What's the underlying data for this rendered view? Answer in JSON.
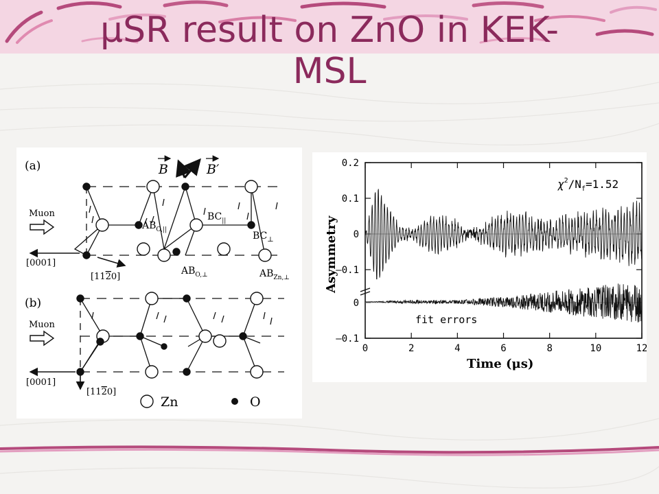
{
  "slide": {
    "title": "μSR result on ZnO in KEK-MSL",
    "title_line1": "μSR result on ZnO in KEK-",
    "title_line2": "MSL",
    "accent_color": "#8b2a5c",
    "banner_color": "#f1c9da"
  },
  "structure_figure": {
    "panel_a_label": "(a)",
    "panel_b_label": "(b)",
    "field_B": "B",
    "field_B_prime": "B′",
    "muon_label_a": "Muon",
    "muon_label_b": "Muon",
    "axis_0001_a": "[0001]",
    "axis_0001_b": "[0001]",
    "axis_1120_a": "[11",
    "axis_1120_a_bar": "2",
    "axis_1120_a_end": "0]",
    "axis_1120_b": "[11",
    "axis_1120_b_bar": "2",
    "axis_1120_b_end": "0]",
    "site_AB_O_par": "AB",
    "site_AB_O_par_sub": "O,||",
    "site_BC_par": "BC",
    "site_BC_par_sub": "||",
    "site_BC_perp": "BC",
    "site_BC_perp_sub": "⊥",
    "site_AB_O_perp": "AB",
    "site_AB_O_perp_sub": "O,⊥",
    "site_AB_Zn_perp": "AB",
    "site_AB_Zn_perp_sub": "Zn,⊥",
    "legend_zn": "Zn",
    "legend_o": "O"
  },
  "chart_data": {
    "type": "line",
    "xlabel": "Time (μs)",
    "ylabel": "Asymmetry",
    "xlim": [
      0,
      12
    ],
    "ylim": [
      -0.1,
      0.2
    ],
    "x_ticks": [
      "0",
      "2",
      "4",
      "6",
      "8",
      "10",
      "12"
    ],
    "y_ticks_upper": [
      "0.2",
      "0.1",
      "0",
      "–0.1"
    ],
    "y_ticks_lower": [
      "0",
      "–0.1"
    ],
    "annotation_chi": "χ",
    "annotation_chi_sup": "2",
    "annotation_nf": "/N",
    "annotation_nf_sub": "f",
    "annotation_value": "=1.52",
    "annotation_fit": "fit errors",
    "series": [
      {
        "name": "",
        "x": [
          0,
          0.5,
          1,
          1.5,
          2,
          3,
          4,
          4.5,
          6,
          7,
          8,
          9,
          10,
          11,
          12
        ],
        "values": [
          0,
          0.14,
          0.07,
          0.02,
          0.01,
          0.05,
          0.03,
          0,
          0.05,
          0.05,
          0.02,
          0.04,
          0.05,
          0.06,
          0.07
        ]
      },
      {
        "name": "fit errors",
        "x": [
          0,
          2,
          4,
          6,
          8,
          10,
          12
        ],
        "values": [
          0,
          0.005,
          0.005,
          0.015,
          0.03,
          0.045,
          0.06
        ]
      }
    ]
  }
}
